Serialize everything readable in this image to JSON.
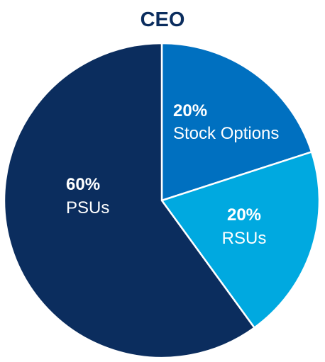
{
  "chart_data": {
    "type": "pie",
    "title": "CEO",
    "slices": [
      {
        "label": "Stock Options",
        "value": 20,
        "display": "20%",
        "color": "#0070C0"
      },
      {
        "label": "RSUs",
        "value": 20,
        "display": "20%",
        "color": "#00A9E0"
      },
      {
        "label": "PSUs",
        "value": 60,
        "display": "60%",
        "color": "#0B2D5E"
      }
    ],
    "start_angle_deg": 0,
    "direction": "clockwise",
    "separator_color": "#ffffff"
  }
}
